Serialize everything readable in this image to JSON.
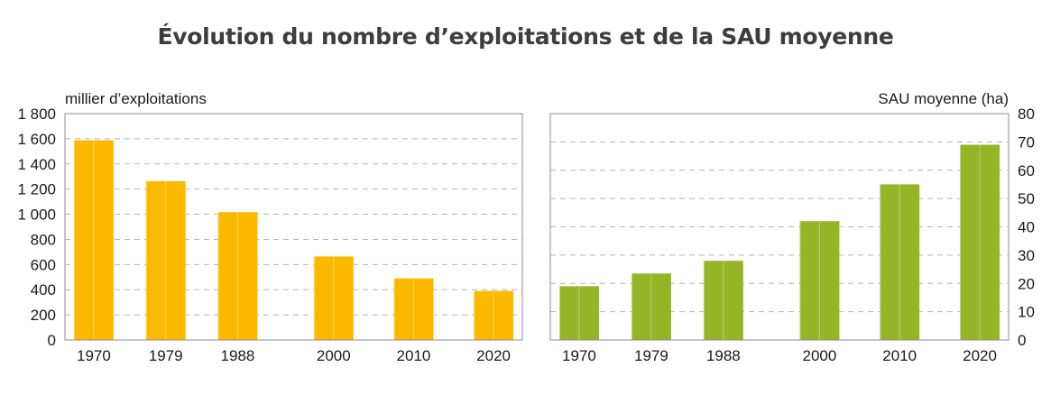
{
  "title": "Évolution du nombre d’exploitations et de la SAU moyenne",
  "chart_data": [
    {
      "type": "bar",
      "categories": [
        "1970",
        "1979",
        "1988",
        "2000",
        "2010",
        "2020"
      ],
      "x_positions": [
        1970,
        1979,
        1988,
        2000,
        2010,
        2020
      ],
      "series": [
        {
          "name": "",
          "values": [
            1588,
            1263,
            1017,
            664,
            490,
            390
          ]
        }
      ],
      "ylabel": "millier d’exploitations",
      "ylim": [
        0,
        1800
      ],
      "yticks": [
        0,
        200,
        400,
        600,
        800,
        1000,
        1200,
        1400,
        1600,
        1800
      ],
      "ytick_labels": [
        "0",
        "200",
        "400",
        "600",
        "800",
        "1 000",
        "1 200",
        "1 400",
        "1 600",
        "1 800"
      ],
      "y_axis_side": "left",
      "grid": "horizontal dashed",
      "color": "#FBBA00"
    },
    {
      "type": "bar",
      "categories": [
        "1970",
        "1979",
        "1988",
        "2000",
        "2010",
        "2020"
      ],
      "x_positions": [
        1970,
        1979,
        1988,
        2000,
        2010,
        2020
      ],
      "series": [
        {
          "name": "",
          "values": [
            19,
            23.5,
            28,
            42,
            55,
            69
          ]
        }
      ],
      "ylabel": "SAU moyenne (ha)",
      "ylim": [
        0,
        80
      ],
      "yticks": [
        0,
        10,
        20,
        30,
        40,
        50,
        60,
        70,
        80
      ],
      "ytick_labels": [
        "0",
        "10",
        "20",
        "30",
        "40",
        "50",
        "60",
        "70",
        "80"
      ],
      "y_axis_side": "right",
      "grid": "horizontal dashed",
      "color": "#95B526"
    }
  ]
}
